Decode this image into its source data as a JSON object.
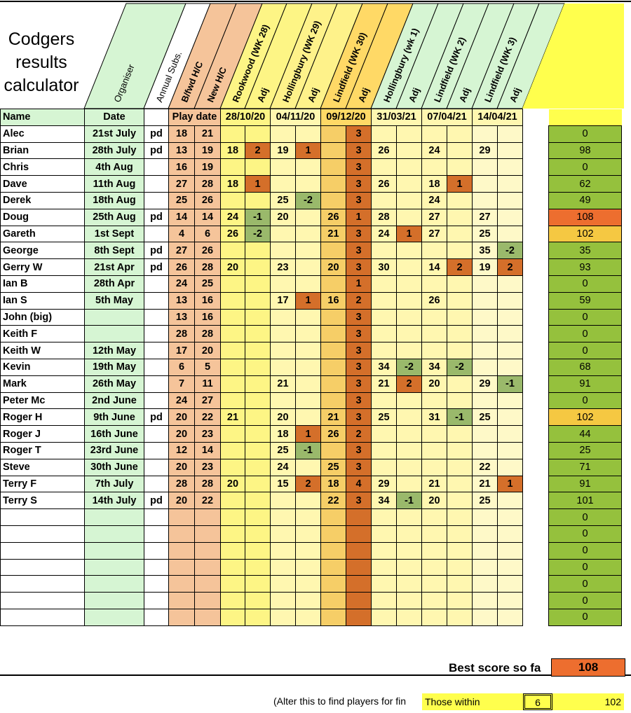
{
  "title_lines": [
    "Codgers",
    "results",
    "calculator"
  ],
  "rotated_headers": [
    "Organiser",
    "Annual Subs.",
    "B/fwd H/C",
    "New H/C",
    "Rookwood (WK 28)",
    "Adj",
    "Hollingbury (WK 29)",
    "Adj",
    "Lindfield (WK 30)",
    "Adj",
    "Hollingbury (wk 1)",
    "Adj",
    "Lindfield (WK 2)",
    "Adj",
    "Lindfield (WK 3)",
    "Adj"
  ],
  "column_headers": {
    "name": "Name",
    "date": "Date",
    "play_date": "Play date",
    "dates": [
      "28/10/20",
      "04/11/20",
      "09/12/20",
      "31/03/21",
      "07/04/21",
      "14/04/21"
    ]
  },
  "rows": [
    {
      "name": "Alec",
      "date": "21st July",
      "pd": "pd",
      "bfwd": "18",
      "new": "21",
      "s": [
        "",
        "",
        "",
        "",
        "",
        "3",
        "",
        "",
        "",
        "",
        "",
        ""
      ],
      "total": "0"
    },
    {
      "name": "Brian",
      "date": "28th July",
      "pd": "pd",
      "bfwd": "13",
      "new": "19",
      "s": [
        "18",
        "2",
        "19",
        "1",
        "",
        "3",
        "26",
        "",
        "24",
        "",
        "29",
        ""
      ],
      "total": "98"
    },
    {
      "name": "Chris",
      "date": "4th Aug",
      "pd": "",
      "bfwd": "16",
      "new": "19",
      "s": [
        "",
        "",
        "",
        "",
        "",
        "3",
        "",
        "",
        "",
        "",
        "",
        ""
      ],
      "total": "0"
    },
    {
      "name": "Dave",
      "date": "11th Aug",
      "pd": "",
      "bfwd": "27",
      "new": "28",
      "s": [
        "18",
        "1",
        "",
        "",
        "",
        "3",
        "26",
        "",
        "18",
        "1",
        "",
        ""
      ],
      "total": "62"
    },
    {
      "name": "Derek",
      "date": "18th Aug",
      "pd": "",
      "bfwd": "25",
      "new": "26",
      "s": [
        "",
        "",
        "25",
        "-2",
        "",
        "3",
        "",
        "",
        "24",
        "",
        "",
        ""
      ],
      "total": "49"
    },
    {
      "name": "Doug",
      "date": "25th Aug",
      "pd": "pd",
      "bfwd": "14",
      "new": "14",
      "s": [
        "24",
        "-1",
        "20",
        "",
        "26",
        "1",
        "28",
        "",
        "27",
        "",
        "27",
        ""
      ],
      "total": "108"
    },
    {
      "name": "Gareth",
      "date": "1st Sept",
      "pd": "",
      "bfwd": "4",
      "new": "6",
      "s": [
        "26",
        "-2",
        "",
        "",
        "21",
        "3",
        "24",
        "1",
        "27",
        "",
        "25",
        ""
      ],
      "total": "102"
    },
    {
      "name": "George",
      "date": "8th Sept",
      "pd": "pd",
      "bfwd": "27",
      "new": "26",
      "s": [
        "",
        "",
        "",
        "",
        "",
        "3",
        "",
        "",
        "",
        "",
        "35",
        "-2"
      ],
      "total": "35"
    },
    {
      "name": "Gerry W",
      "date": "21st Apr",
      "pd": "pd",
      "bfwd": "26",
      "new": "28",
      "s": [
        "20",
        "",
        "23",
        "",
        "20",
        "3",
        "30",
        "",
        "14",
        "2",
        "19",
        "2"
      ],
      "total": "93"
    },
    {
      "name": "Ian B",
      "date": "28th Apr",
      "pd": "",
      "bfwd": "24",
      "new": "25",
      "s": [
        "",
        "",
        "",
        "",
        "",
        "1",
        "",
        "",
        "",
        "",
        "",
        ""
      ],
      "total": "0"
    },
    {
      "name": "Ian S",
      "date": "5th May",
      "pd": "",
      "bfwd": "13",
      "new": "16",
      "s": [
        "",
        "",
        "17",
        "1",
        "16",
        "2",
        "",
        "",
        "26",
        "",
        "",
        ""
      ],
      "total": "59"
    },
    {
      "name": "John (big)",
      "date": "",
      "pd": "",
      "bfwd": "13",
      "new": "16",
      "s": [
        "",
        "",
        "",
        "",
        "",
        "3",
        "",
        "",
        "",
        "",
        "",
        ""
      ],
      "total": "0"
    },
    {
      "name": "Keith F",
      "date": "",
      "pd": "",
      "bfwd": "28",
      "new": "28",
      "s": [
        "",
        "",
        "",
        "",
        "",
        "3",
        "",
        "",
        "",
        "",
        "",
        ""
      ],
      "total": "0"
    },
    {
      "name": "Keith W",
      "date": "12th May",
      "pd": "",
      "bfwd": "17",
      "new": "20",
      "s": [
        "",
        "",
        "",
        "",
        "",
        "3",
        "",
        "",
        "",
        "",
        "",
        ""
      ],
      "total": "0"
    },
    {
      "name": "Kevin",
      "date": "19th May",
      "pd": "",
      "bfwd": "6",
      "new": "5",
      "s": [
        "",
        "",
        "",
        "",
        "",
        "3",
        "34",
        "-2",
        "34",
        "-2",
        "",
        ""
      ],
      "total": "68"
    },
    {
      "name": "Mark",
      "date": "26th May",
      "pd": "",
      "bfwd": "7",
      "new": "11",
      "s": [
        "",
        "",
        "21",
        "",
        "",
        "3",
        "21",
        "2",
        "20",
        "",
        "29",
        "-1"
      ],
      "total": "91"
    },
    {
      "name": "Peter Mc",
      "date": "2nd June",
      "pd": "",
      "bfwd": "24",
      "new": "27",
      "s": [
        "",
        "",
        "",
        "",
        "",
        "3",
        "",
        "",
        "",
        "",
        "",
        ""
      ],
      "total": "0"
    },
    {
      "name": "Roger H",
      "date": "9th June",
      "pd": "pd",
      "bfwd": "20",
      "new": "22",
      "s": [
        "21",
        "",
        "20",
        "",
        "21",
        "3",
        "25",
        "",
        "31",
        "-1",
        "25",
        ""
      ],
      "total": "102"
    },
    {
      "name": "Roger J",
      "date": "16th June",
      "pd": "",
      "bfwd": "20",
      "new": "23",
      "s": [
        "",
        "",
        "18",
        "1",
        "26",
        "2",
        "",
        "",
        "",
        "",
        "",
        ""
      ],
      "total": "44"
    },
    {
      "name": "Roger T",
      "date": "23rd June",
      "pd": "",
      "bfwd": "12",
      "new": "14",
      "s": [
        "",
        "",
        "25",
        "-1",
        "",
        "3",
        "",
        "",
        "",
        "",
        "",
        ""
      ],
      "total": "25"
    },
    {
      "name": "Steve",
      "date": "30th June",
      "pd": "",
      "bfwd": "20",
      "new": "23",
      "s": [
        "",
        "",
        "24",
        "",
        "25",
        "3",
        "",
        "",
        "",
        "",
        "22",
        ""
      ],
      "total": "71"
    },
    {
      "name": "Terry F",
      "date": "7th July",
      "pd": "",
      "bfwd": "28",
      "new": "28",
      "s": [
        "20",
        "",
        "15",
        "2",
        "18",
        "4",
        "29",
        "",
        "21",
        "",
        "21",
        "1"
      ],
      "total": "91"
    },
    {
      "name": "Terry S",
      "date": "14th July",
      "pd": "pd",
      "bfwd": "20",
      "new": "22",
      "s": [
        "",
        "",
        "",
        "",
        "22",
        "3",
        "34",
        "-1",
        "20",
        "",
        "25",
        ""
      ],
      "total": "101"
    }
  ],
  "empty_totals": [
    "0",
    "0",
    "0",
    "0",
    "0",
    "0",
    "0"
  ],
  "best": {
    "label": "Best score so fa",
    "value": "108"
  },
  "footer": {
    "note": "(Alter this to find players for fin",
    "within_label": "Those within",
    "within_value": "6",
    "within_result": "102"
  },
  "colors": {
    "high_total": "#ed6e2f",
    "near_total": "#f5c842",
    "normal_total": "#95c13d",
    "adj_positive": "#d46f2a",
    "adj_negative": "#9ab96b"
  }
}
